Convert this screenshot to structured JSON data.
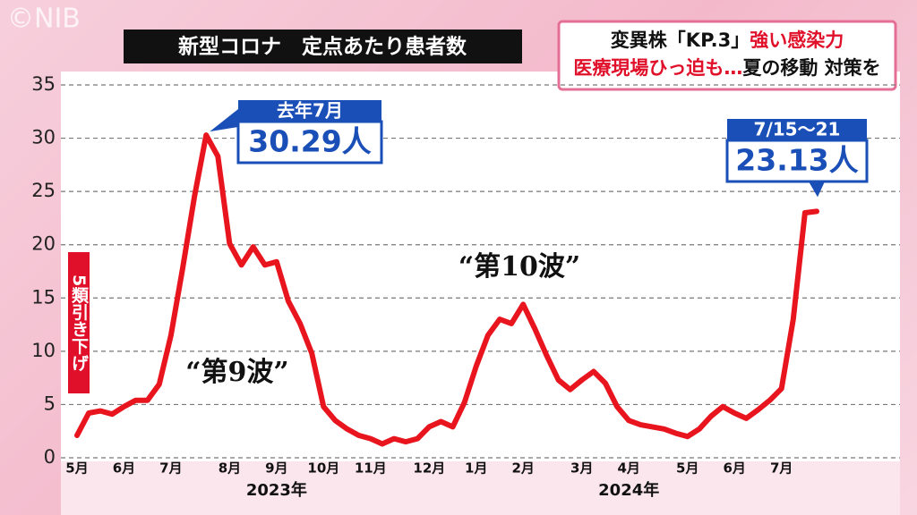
{
  "chart_data": {
    "type": "line",
    "logo": "©NIB",
    "title": "新型コロナ　定点あたり患者数",
    "headline": [
      [
        {
          "text": "変異株「KP.3」",
          "color": "#111111"
        },
        {
          "text": "強い感染力",
          "color": "#e0102a"
        }
      ],
      [
        {
          "text": "医療現場ひっ迫も…",
          "color": "#e0102a"
        },
        {
          "text": "夏の移動 対策を",
          "color": "#111111"
        }
      ]
    ],
    "categories": [
      "5月",
      null,
      null,
      null,
      "6月",
      null,
      null,
      null,
      "7月",
      null,
      null,
      null,
      null,
      "8月",
      null,
      null,
      null,
      "9月",
      null,
      null,
      null,
      "10月",
      null,
      null,
      null,
      "11月",
      null,
      null,
      null,
      null,
      "12月",
      null,
      null,
      null,
      "1月",
      null,
      null,
      null,
      "2月",
      null,
      null,
      null,
      null,
      "3月",
      null,
      null,
      null,
      "4月",
      null,
      null,
      null,
      null,
      "5月",
      null,
      null,
      null,
      "6月",
      null,
      null,
      null,
      "7月",
      null,
      null,
      null
    ],
    "years": [
      {
        "label": "2023年",
        "index": 17
      },
      {
        "label": "2024年",
        "index": 47
      }
    ],
    "series": [
      {
        "name": "定点あたり患者数",
        "color": "#e8141e",
        "values": [
          2.1,
          4.2,
          4.4,
          4.1,
          4.8,
          5.4,
          5.4,
          6.9,
          11.5,
          17.8,
          24.5,
          30.29,
          28.3,
          20.1,
          18.1,
          19.8,
          18.1,
          18.4,
          14.7,
          12.6,
          9.8,
          4.8,
          3.5,
          2.7,
          2.1,
          1.8,
          1.3,
          1.8,
          1.5,
          1.8,
          2.9,
          3.4,
          2.9,
          5.2,
          8.6,
          11.5,
          13.0,
          12.6,
          14.4,
          12.1,
          9.6,
          7.3,
          6.4,
          7.3,
          8.1,
          7.0,
          4.8,
          3.5,
          3.1,
          2.9,
          2.7,
          2.3,
          2.0,
          2.7,
          3.9,
          4.8,
          4.2,
          3.7,
          4.5,
          5.4,
          6.5,
          13.0,
          23.0,
          23.13
        ]
      }
    ],
    "ylim": [
      0,
      35
    ],
    "yticks": [
      0,
      5,
      10,
      15,
      20,
      25,
      30,
      35
    ],
    "grid": true,
    "callouts": [
      {
        "index": 11,
        "header": "去年7月",
        "text": "30.29人"
      },
      {
        "index": 63,
        "header": "7/15～21",
        "text": "23.13人"
      }
    ],
    "wave_labels": [
      {
        "text": "“第9波”",
        "index": 20
      },
      {
        "text": "“第10波”",
        "index": 40
      }
    ],
    "note": "5類引き下げ"
  }
}
